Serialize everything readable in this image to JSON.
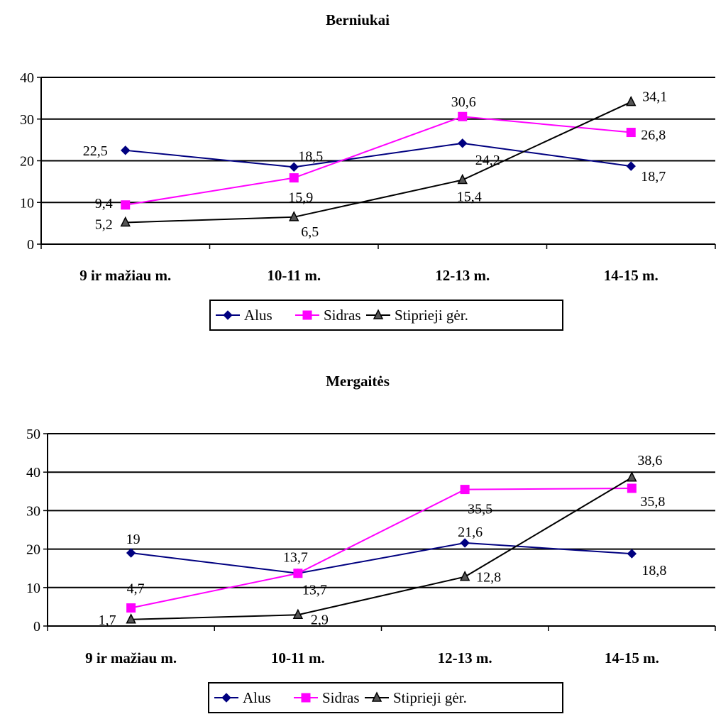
{
  "chart_data": [
    {
      "type": "line",
      "title": "Berniukai",
      "categories": [
        "9 ir mažiau m.",
        "10-11 m.",
        "12-13 m.",
        "14-15 m."
      ],
      "ylim": [
        0,
        40
      ],
      "yticks": [
        "0",
        "10",
        "20",
        "30",
        "40"
      ],
      "grid": true,
      "legend": "bottom",
      "series": [
        {
          "name": "Alus",
          "values": [
            22.5,
            18.5,
            24.2,
            18.7
          ],
          "labels": [
            "22,5",
            "18,5",
            "24,2",
            "18,7"
          ],
          "color": "#000080",
          "marker": "diamond"
        },
        {
          "name": "Sidras",
          "values": [
            9.4,
            15.9,
            30.6,
            26.8
          ],
          "labels": [
            "9,4",
            "15,9",
            "30,6",
            "26,8"
          ],
          "color": "#ff00ff",
          "marker": "square"
        },
        {
          "name": "Stiprieji gėr.",
          "values": [
            5.2,
            6.5,
            15.4,
            34.1
          ],
          "labels": [
            "5,2",
            "6,5",
            "15,4",
            "34,1"
          ],
          "color": "#000000",
          "marker": "triangle"
        }
      ]
    },
    {
      "type": "line",
      "title": "Mergaitės",
      "categories": [
        "9 ir mažiau m.",
        "10-11 m.",
        "12-13 m.",
        "14-15 m."
      ],
      "ylim": [
        0,
        50
      ],
      "yticks": [
        "0",
        "10",
        "20",
        "30",
        "40",
        "50"
      ],
      "grid": true,
      "legend": "bottom",
      "series": [
        {
          "name": "Alus",
          "values": [
            19,
            13.7,
            21.6,
            18.8
          ],
          "labels": [
            "19",
            "13,7",
            "21,6",
            "18,8"
          ],
          "color": "#000080",
          "marker": "diamond"
        },
        {
          "name": "Sidras",
          "values": [
            4.7,
            13.7,
            35.5,
            35.8
          ],
          "labels": [
            "4,7",
            "13,7",
            "35,5",
            "35,8"
          ],
          "color": "#ff00ff",
          "marker": "square"
        },
        {
          "name": "Stiprieji gėr.",
          "values": [
            1.7,
            2.9,
            12.8,
            38.6
          ],
          "labels": [
            "1,7",
            "2,9",
            "12,8",
            "38,6"
          ],
          "color": "#000000",
          "marker": "triangle"
        }
      ]
    }
  ]
}
